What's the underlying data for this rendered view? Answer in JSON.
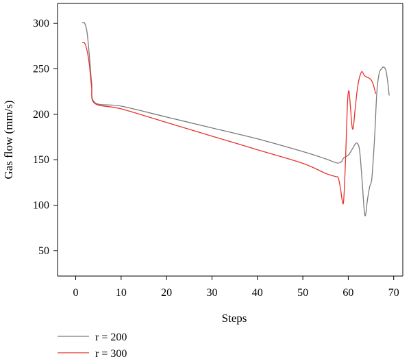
{
  "chart_data": {
    "type": "line",
    "xlabel": "Steps",
    "ylabel": "Gas flow (mm/s)",
    "xlim": [
      -4,
      72
    ],
    "ylim": [
      22,
      322
    ],
    "xticks": [
      0,
      10,
      20,
      30,
      40,
      50,
      60,
      70
    ],
    "yticks": [
      50,
      100,
      150,
      200,
      250,
      300
    ],
    "grid": false,
    "legend_position": "bottom-left",
    "series": [
      {
        "name": "r = 200",
        "color": "#7a7a7a",
        "points": [
          [
            1.5,
            301
          ],
          [
            2.0,
            300
          ],
          [
            2.5,
            290
          ],
          [
            3.0,
            265
          ],
          [
            3.5,
            235
          ],
          [
            4.2,
            213
          ],
          [
            10,
            209
          ],
          [
            20,
            197
          ],
          [
            30,
            185
          ],
          [
            40,
            173
          ],
          [
            50,
            159
          ],
          [
            55,
            151
          ],
          [
            57.5,
            146.5
          ],
          [
            58.5,
            148
          ],
          [
            59.0,
            152
          ],
          [
            60.0,
            155
          ],
          [
            60.8,
            161
          ],
          [
            61.5,
            167
          ],
          [
            62.0,
            168
          ],
          [
            62.5,
            160
          ],
          [
            63.0,
            130
          ],
          [
            63.5,
            95
          ],
          [
            63.8,
            89
          ],
          [
            64.2,
            105
          ],
          [
            64.7,
            120
          ],
          [
            65.2,
            130
          ],
          [
            65.8,
            175
          ],
          [
            66.3,
            225
          ],
          [
            66.8,
            245
          ],
          [
            67.3,
            250
          ],
          [
            67.8,
            252
          ],
          [
            68.3,
            248
          ],
          [
            68.7,
            235
          ],
          [
            69.0,
            221
          ]
        ]
      },
      {
        "name": "r = 300",
        "color": "#e8312a",
        "points": [
          [
            1.5,
            279
          ],
          [
            2.0,
            278
          ],
          [
            2.5,
            270
          ],
          [
            3.0,
            255
          ],
          [
            3.5,
            230
          ],
          [
            4.2,
            212
          ],
          [
            10,
            206
          ],
          [
            20,
            191
          ],
          [
            30,
            176
          ],
          [
            40,
            161
          ],
          [
            50,
            146
          ],
          [
            55,
            135
          ],
          [
            57.2,
            131.5
          ],
          [
            57.8,
            130
          ],
          [
            58.3,
            118
          ],
          [
            58.7,
            104
          ],
          [
            59.0,
            106
          ],
          [
            59.4,
            150
          ],
          [
            59.8,
            210
          ],
          [
            60.1,
            226
          ],
          [
            60.4,
            213
          ],
          [
            60.8,
            188
          ],
          [
            61.1,
            185
          ],
          [
            61.5,
            205
          ],
          [
            62.0,
            228
          ],
          [
            62.5,
            241
          ],
          [
            63.0,
            247
          ],
          [
            63.5,
            243
          ],
          [
            64.0,
            241
          ],
          [
            64.5,
            240
          ],
          [
            65.0,
            238
          ],
          [
            65.5,
            233
          ],
          [
            66.0,
            223
          ]
        ]
      }
    ]
  }
}
